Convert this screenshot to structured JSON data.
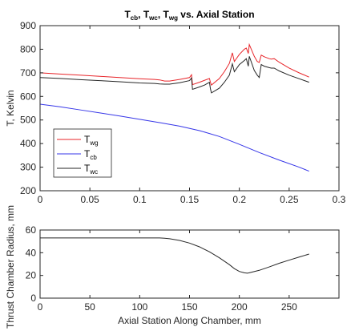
{
  "chart_data": [
    {
      "type": "line",
      "title": {
        "base": "T",
        "parts": [
          {
            "main": "T",
            "sub": "cb",
            "tail": ", "
          },
          {
            "main": "T",
            "sub": "wc",
            "tail": ", "
          },
          {
            "main": "T",
            "sub": "wg",
            "tail": " vs. Axial Station"
          }
        ]
      },
      "xlabel": "",
      "ylabel": "T, Kelvin",
      "xlim": [
        0,
        0.3
      ],
      "ylim": [
        200,
        900
      ],
      "xticks": [
        0,
        0.05,
        0.1,
        0.15,
        0.2,
        0.25,
        0.3
      ],
      "xtick_labels": [
        "0",
        "0.05",
        "0.1",
        "0.15",
        "0.2",
        "0.25",
        "0.3"
      ],
      "yticks": [
        200,
        300,
        400,
        500,
        600,
        700,
        800,
        900
      ],
      "ytick_labels": [
        "200",
        "300",
        "400",
        "500",
        "600",
        "700",
        "800",
        "900"
      ],
      "grid": false,
      "legend_position": "bottom-left",
      "series": [
        {
          "name": "wg",
          "label_main": "T",
          "label_sub": "wg",
          "color": "#e8252a",
          "x": [
            0,
            0.02,
            0.04,
            0.06,
            0.08,
            0.1,
            0.115,
            0.12,
            0.125,
            0.13,
            0.14,
            0.15,
            0.152,
            0.153,
            0.16,
            0.165,
            0.17,
            0.171,
            0.172,
            0.18,
            0.185,
            0.19,
            0.193,
            0.195,
            0.2,
            0.205,
            0.207,
            0.209,
            0.21,
            0.215,
            0.218,
            0.22,
            0.222,
            0.225,
            0.23,
            0.232,
            0.235,
            0.24,
            0.25,
            0.26,
            0.27
          ],
          "y": [
            700,
            695,
            690,
            685,
            680,
            675,
            672,
            670,
            665,
            665,
            672,
            680,
            692,
            650,
            660,
            668,
            676,
            660,
            648,
            676,
            705,
            740,
            785,
            748,
            778,
            800,
            805,
            782,
            820,
            770,
            748,
            744,
            775,
            768,
            760,
            758,
            760,
            745,
            720,
            700,
            682
          ]
        },
        {
          "name": "cb",
          "label_main": "T",
          "label_sub": "cb",
          "color": "#3636e8",
          "x": [
            0,
            0.02,
            0.04,
            0.06,
            0.08,
            0.1,
            0.12,
            0.14,
            0.16,
            0.18,
            0.2,
            0.22,
            0.24,
            0.26,
            0.27
          ],
          "y": [
            567,
            556,
            543,
            530,
            517,
            503,
            489,
            474,
            455,
            430,
            397,
            362,
            330,
            300,
            283
          ]
        },
        {
          "name": "wc",
          "label_main": "T",
          "label_sub": "wc",
          "color": "#262626",
          "x": [
            0,
            0.02,
            0.04,
            0.06,
            0.08,
            0.1,
            0.115,
            0.12,
            0.125,
            0.13,
            0.14,
            0.15,
            0.152,
            0.153,
            0.16,
            0.165,
            0.17,
            0.171,
            0.172,
            0.18,
            0.185,
            0.19,
            0.193,
            0.195,
            0.2,
            0.205,
            0.207,
            0.209,
            0.21,
            0.215,
            0.218,
            0.22,
            0.222,
            0.225,
            0.23,
            0.232,
            0.235,
            0.24,
            0.25,
            0.26,
            0.27
          ],
          "y": [
            680,
            676,
            671,
            667,
            662,
            657,
            655,
            653,
            652,
            652,
            658,
            667,
            678,
            630,
            640,
            648,
            660,
            632,
            615,
            635,
            660,
            690,
            738,
            705,
            735,
            752,
            760,
            728,
            770,
            710,
            690,
            680,
            735,
            728,
            722,
            720,
            720,
            708,
            690,
            675,
            660
          ]
        }
      ]
    },
    {
      "type": "line",
      "title": "",
      "xlabel": "Axial Station Along Chamber, mm",
      "ylabel": "Thrust Chamber Radius, mm",
      "xlim": [
        0,
        300
      ],
      "ylim": [
        0,
        60
      ],
      "xticks": [
        0,
        50,
        100,
        150,
        200,
        250
      ],
      "xtick_labels": [
        "0",
        "50",
        "100",
        "150",
        "200",
        "250"
      ],
      "yticks": [
        0,
        20,
        40,
        60
      ],
      "ytick_labels": [
        "0",
        "20",
        "40",
        "60"
      ],
      "grid": false,
      "series": [
        {
          "name": "",
          "color": "#262626",
          "x": [
            0,
            50,
            100,
            120,
            125,
            130,
            140,
            150,
            160,
            170,
            180,
            190,
            195,
            200,
            205,
            208,
            210,
            220,
            230,
            240,
            250,
            260,
            270
          ],
          "y": [
            53,
            53,
            53,
            53,
            52.8,
            52.3,
            50.8,
            48.5,
            45.2,
            40.8,
            35.5,
            29.5,
            26,
            23.5,
            22.3,
            22,
            22.3,
            24.5,
            27.5,
            30.7,
            33.5,
            36.2,
            38.8
          ]
        },
        {
          "name": "",
          "color": "#e8252a",
          "dashed": true,
          "x": [
            0,
            270
          ],
          "y": [
            0,
            0
          ]
        }
      ]
    }
  ]
}
